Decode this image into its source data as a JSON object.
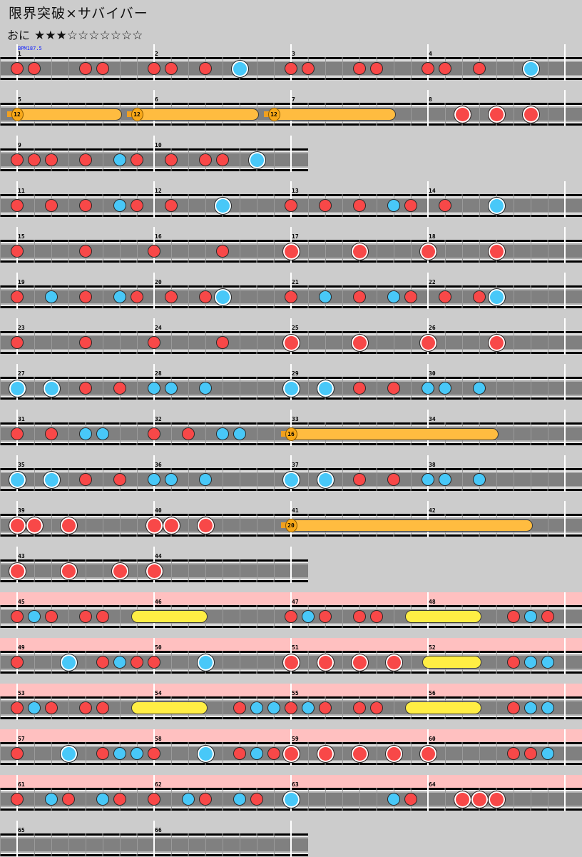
{
  "song": {
    "title": "限界突破×サバイバー"
  },
  "difficulty": {
    "name": "おに",
    "stars_filled": 3,
    "stars_max": 10,
    "stars_text": "★★★☆☆☆☆☆☆☆"
  },
  "bpm_label": "BPM187.5",
  "colors": {
    "don": "#f84848",
    "ka": "#48c8f8",
    "drumroll": "#ffee44",
    "balloon": "#ffbc40",
    "gogo": "#ffc0c0",
    "lane": "#808080",
    "background": "#cccccc"
  },
  "note_legend": {
    "1": "don",
    "2": "ka",
    "3": "big don",
    "4": "big ka",
    "5": "drumroll start",
    "7": "balloon start",
    "8": "roll end",
    "0": "empty"
  },
  "gogo_measures": [
    45,
    64
  ],
  "balloon_counts": [
    "12",
    "12",
    "12",
    "16",
    "20"
  ],
  "lines": [
    [
      [
        "1",
        "11001100"
      ],
      [
        "2",
        "11010400"
      ],
      [
        "3",
        "11001100"
      ],
      [
        "4",
        "11010040"
      ]
    ],
    [
      [
        "5",
        "70000087"
      ],
      [
        "6",
        "00000087"
      ],
      [
        "7",
        "00000080"
      ],
      [
        "8",
        "00303030"
      ]
    ],
    [
      [
        "9",
        "11101021"
      ],
      [
        "10",
        "01011040"
      ]
    ],
    [
      [
        "11",
        "10101021"
      ],
      [
        "12",
        "01004000"
      ],
      [
        "13",
        "10101021"
      ],
      [
        "14",
        "01004000"
      ]
    ],
    [
      [
        "15",
        "10001000"
      ],
      [
        "16",
        "10001000"
      ],
      [
        "17",
        "30003000"
      ],
      [
        "18",
        "30003000"
      ]
    ],
    [
      [
        "19",
        "10201021"
      ],
      [
        "20",
        "01014000"
      ],
      [
        "21",
        "10201021"
      ],
      [
        "22",
        "01014000"
      ]
    ],
    [
      [
        "23",
        "10001000"
      ],
      [
        "24",
        "10001000"
      ],
      [
        "25",
        "30003000"
      ],
      [
        "26",
        "30003000"
      ]
    ],
    [
      [
        "27",
        "40401010"
      ],
      [
        "28",
        "22020000"
      ],
      [
        "29",
        "40401010"
      ],
      [
        "30",
        "22020000"
      ]
    ],
    [
      [
        "31",
        "10102200"
      ],
      [
        "32",
        "10102200"
      ],
      [
        "33",
        "70000000"
      ],
      [
        "34",
        "00008000"
      ]
    ],
    [
      [
        "35",
        "40401010"
      ],
      [
        "36",
        "22020000"
      ],
      [
        "37",
        "40401010"
      ],
      [
        "38",
        "22020000"
      ]
    ],
    [
      [
        "39",
        "33030000"
      ],
      [
        "40",
        "33030000"
      ],
      [
        "41",
        "70000000"
      ],
      [
        "42",
        "00000080"
      ]
    ],
    [
      [
        "43",
        "30030030"
      ],
      [
        "44",
        "30000000"
      ]
    ],
    [
      [
        "45",
        "12101105"
      ],
      [
        "46",
        "00080000"
      ],
      [
        "47",
        "12101105"
      ],
      [
        "48",
        "00080121"
      ]
    ],
    [
      [
        "49",
        "10040121"
      ],
      [
        "50",
        "10040000"
      ],
      [
        "51",
        "30303030"
      ],
      [
        "52",
        "50080122"
      ]
    ],
    [
      [
        "53",
        "12101105"
      ],
      [
        "54",
        "00080122"
      ],
      [
        "55",
        "12101105"
      ],
      [
        "56",
        "00080122"
      ]
    ],
    [
      [
        "57",
        "10040122"
      ],
      [
        "58",
        "10040121"
      ],
      [
        "59",
        "30303030"
      ],
      [
        "60",
        "30000112"
      ]
    ],
    [
      [
        "61",
        "10210210"
      ],
      [
        "62",
        "10210210"
      ],
      [
        "63",
        "40000021"
      ],
      [
        "64",
        "00333000"
      ]
    ],
    [
      [
        "65",
        "00000000"
      ],
      [
        "66",
        "00000000"
      ]
    ]
  ]
}
